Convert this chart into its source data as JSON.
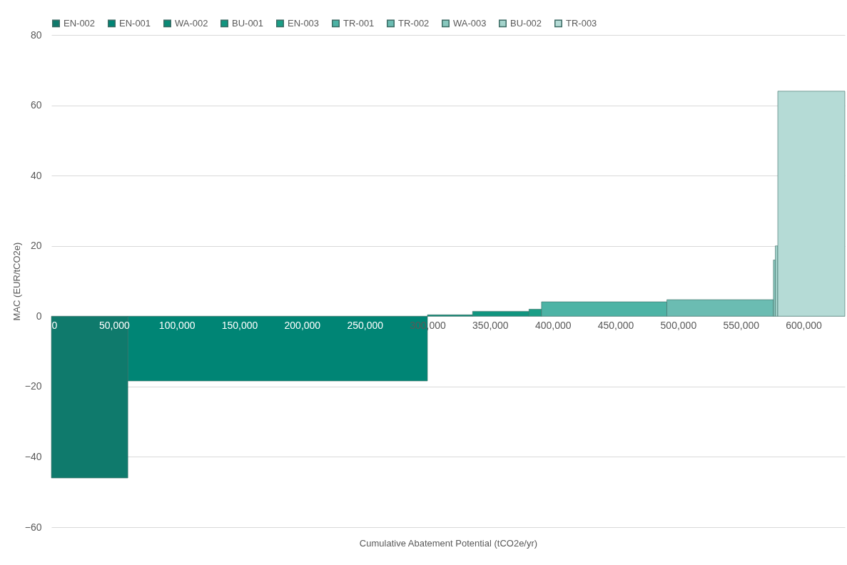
{
  "chart_data": {
    "type": "area",
    "xlabel": "Cumulative Abatement Potential (tCO2e/yr)",
    "ylabel": "MAC (EUR/tCO2e)",
    "xlim": [
      0,
      633000
    ],
    "xticks": [
      0,
      {
        "value": 50000,
        "label": "50,000"
      },
      {
        "value": 100000,
        "label": "100,000"
      },
      {
        "value": 150000,
        "label": "150,000"
      },
      {
        "value": 200000,
        "label": "200,000"
      },
      {
        "value": 250000,
        "label": "250,000"
      },
      {
        "value": 300000,
        "label": "300,000"
      },
      {
        "value": 350000,
        "label": "350,000"
      },
      {
        "value": 400000,
        "label": "400,000"
      },
      {
        "value": 450000,
        "label": "450,000"
      },
      {
        "value": 500000,
        "label": "500,000"
      },
      {
        "value": 550000,
        "label": "550,000"
      },
      {
        "value": 600000,
        "label": "600,000"
      }
    ],
    "ylim": [
      -60,
      80
    ],
    "yticks": [
      -60,
      -40,
      -20,
      0,
      20,
      40,
      60,
      80
    ],
    "grid": "y",
    "legend": "top",
    "series": [
      {
        "name": "EN-002",
        "color": "#0f7a6c",
        "x": [
          0,
          61000
        ],
        "values": [
          -46,
          -46
        ]
      },
      {
        "name": "EN-001",
        "color": "#008575",
        "x": [
          61000,
          300000
        ],
        "values": [
          -18.4,
          -18.4
        ]
      },
      {
        "name": "WA-002",
        "color": "#0a8a76",
        "x": [
          300000,
          336000
        ],
        "values": [
          0.4,
          0.4
        ]
      },
      {
        "name": "BU-001",
        "color": "#11957f",
        "x": [
          336000,
          381000
        ],
        "values": [
          1.4,
          1.4
        ]
      },
      {
        "name": "EN-003",
        "color": "#1a9e86",
        "x": [
          381000,
          391000
        ],
        "values": [
          2,
          2
        ]
      },
      {
        "name": "TR-001",
        "color": "#4db3a5",
        "x": [
          391000,
          491000
        ],
        "values": [
          4.1,
          4.1
        ]
      },
      {
        "name": "TR-002",
        "color": "#6bbcb2",
        "x": [
          491000,
          576000
        ],
        "values": [
          4.7,
          4.7
        ]
      },
      {
        "name": "WA-003",
        "color": "#88c8be",
        "x": [
          576000,
          577500
        ],
        "values": [
          16,
          16
        ]
      },
      {
        "name": "BU-002",
        "color": "#a3d3cb",
        "x": [
          577500,
          579500
        ],
        "values": [
          20,
          20
        ]
      },
      {
        "name": "TR-003",
        "color": "#b5dbd6",
        "x": [
          579500,
          633000
        ],
        "values": [
          64,
          64
        ]
      }
    ]
  }
}
